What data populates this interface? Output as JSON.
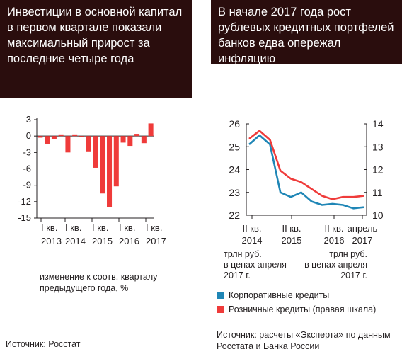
{
  "left_panel": {
    "header": "Инвестиции в основной капитал в первом квартале показали максимальный прирост за последние четыре года",
    "note_line1": "изменение к соотв. кварталу",
    "note_line2": "предыдущего года, %",
    "source": "Источник: Росстат"
  },
  "right_panel": {
    "header": "В начале 2017 года рост рублевых кредитных портфелей банков едва опережал инфляцию",
    "unit_left": [
      "трлн руб.",
      "в ценах апреля",
      "2017 г."
    ],
    "unit_right": [
      "трлн руб.",
      "в ценах апреля",
      "2017 г."
    ],
    "source_line1": "Источник: расчеты «Эксперта» по данным",
    "source_line2": "Росстата и Банка России"
  },
  "colors": {
    "bar": "#ef3b3a",
    "corporate": "#1f86b6",
    "retail": "#ef3b3a",
    "header_bg": "#2a0d0d"
  },
  "chart_data": [
    {
      "type": "bar",
      "ylim": [
        -15,
        3
      ],
      "yticks": [
        "3",
        "0",
        "-3",
        "-6",
        "-9",
        "-12",
        "-15"
      ],
      "ytick_values": [
        3,
        0,
        -3,
        -6,
        -9,
        -12,
        -15
      ],
      "xtick_labels": [
        [
          "I кв.",
          "2013"
        ],
        [
          "I кв.",
          "2014"
        ],
        [
          "I кв.",
          "2015"
        ],
        [
          "I кв.",
          "2016"
        ],
        [
          "I кв.",
          "2017"
        ]
      ],
      "values": [
        -0.3,
        -1.4,
        -0.6,
        0.3,
        -3,
        0.3,
        -0.2,
        -2.8,
        -5.8,
        -10.5,
        -13,
        -9.2,
        -1.2,
        -1.8,
        0.4,
        -1.3,
        2.3
      ],
      "ylabel": "изменение к соотв. кварталу предыдущего года, %",
      "grid": false
    },
    {
      "type": "line",
      "xtick_labels": [
        [
          "II кв.",
          "2014"
        ],
        [
          "II кв.",
          "2015"
        ],
        [
          "II кв.",
          "2016"
        ],
        [
          "апрель",
          "2017"
        ]
      ],
      "ylim_left": [
        22,
        26
      ],
      "ylim_right": [
        10,
        14
      ],
      "yticks_left": [
        "26",
        "25",
        "24",
        "23",
        "22"
      ],
      "yticks_right": [
        "14",
        "13",
        "12",
        "11",
        "10"
      ],
      "series": [
        {
          "name": "Корпоративные кредиты",
          "axis": "left",
          "values": [
            25.1,
            25.5,
            25.1,
            23.0,
            22.8,
            23.0,
            22.6,
            22.45,
            22.5,
            22.45,
            22.3,
            22.35
          ]
        },
        {
          "name": "Розничные кредиты (правая шкала)",
          "axis": "right",
          "values": [
            13.35,
            13.7,
            13.3,
            11.95,
            11.6,
            11.45,
            11.15,
            10.85,
            10.7,
            10.8,
            10.8,
            10.85
          ]
        }
      ],
      "legend_position": "bottom",
      "grid": false
    }
  ]
}
